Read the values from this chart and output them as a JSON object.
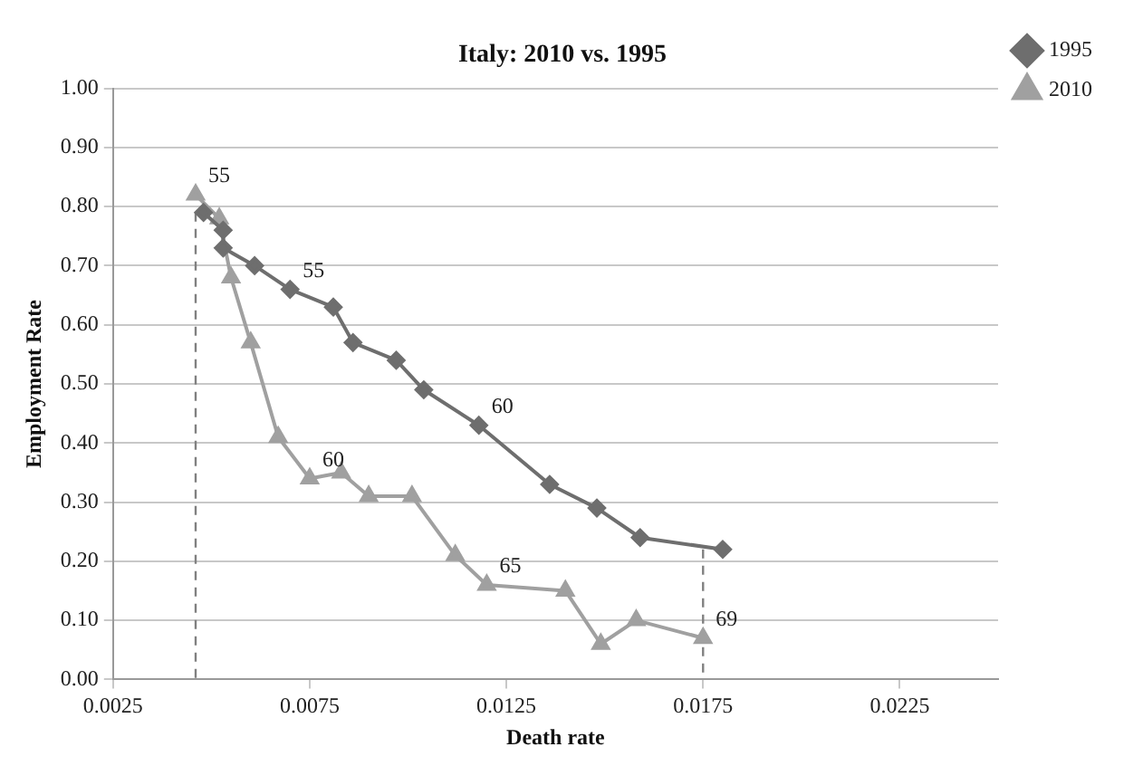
{
  "chart_data": {
    "type": "line",
    "title": "Italy: 2010 vs. 1995",
    "xlabel": "Death rate",
    "ylabel": "Employment Rate",
    "xlim": [
      0.0025,
      0.025
    ],
    "xticks": [
      {
        "value": 0.0025,
        "label": "0.0025"
      },
      {
        "value": 0.0075,
        "label": "0.0075"
      },
      {
        "value": 0.0125,
        "label": "0.0125"
      },
      {
        "value": 0.0175,
        "label": "0.0175"
      },
      {
        "value": 0.0225,
        "label": "0.0225"
      }
    ],
    "ylim": [
      0,
      1
    ],
    "yticks": [
      {
        "value": 0,
        "label": "0.00"
      },
      {
        "value": 0.1,
        "label": "0.10"
      },
      {
        "value": 0.2,
        "label": "0.20"
      },
      {
        "value": 0.3,
        "label": "0.30"
      },
      {
        "value": 0.4,
        "label": "0.40"
      },
      {
        "value": 0.5,
        "label": "0.50"
      },
      {
        "value": 0.6,
        "label": "0.60"
      },
      {
        "value": 0.7,
        "label": "0.70"
      },
      {
        "value": 0.8,
        "label": "0.80"
      },
      {
        "value": 0.9,
        "label": "0.90"
      },
      {
        "value": 1,
        "label": "1.00"
      }
    ],
    "grid": "y",
    "legend": "right",
    "series": [
      {
        "name": "1995",
        "color": "#6e6e6e",
        "marker": "diamond",
        "x": [
          0.0048,
          0.0053,
          0.0053,
          0.0061,
          0.007,
          0.0081,
          0.0086,
          0.0097,
          0.0104,
          0.0118,
          0.0136,
          0.0148,
          0.0159,
          0.018
        ],
        "values": [
          0.79,
          0.76,
          0.73,
          0.7,
          0.66,
          0.63,
          0.57,
          0.54,
          0.49,
          0.43,
          0.33,
          0.29,
          0.24,
          0.22
        ]
      },
      {
        "name": "2010",
        "color": "#a0a0a0",
        "marker": "triangle",
        "x": [
          0.0046,
          0.0052,
          0.0055,
          0.006,
          0.0067,
          0.0075,
          0.0083,
          0.009,
          0.0101,
          0.0112,
          0.012,
          0.014,
          0.0149,
          0.0158,
          0.0175
        ],
        "values": [
          0.82,
          0.78,
          0.68,
          0.57,
          0.41,
          0.34,
          0.35,
          0.31,
          0.31,
          0.21,
          0.16,
          0.15,
          0.06,
          0.1,
          0.07
        ]
      },
      {
        "color": "#808080",
        "marker": "none",
        "line_style": "dashed",
        "x": [
          0.0046,
          0.0046
        ],
        "values": [
          0.79,
          0
        ]
      },
      {
        "color": "#808080",
        "marker": "none",
        "line_style": "dashed",
        "x": [
          0.0175,
          0.0175
        ],
        "values": [
          0.22,
          0
        ]
      }
    ],
    "annotations": [
      {
        "text": "55",
        "x": 0.0046,
        "y": 0.82
      },
      {
        "text": "55",
        "x": 0.007,
        "y": 0.66
      },
      {
        "text": "60",
        "x": 0.0118,
        "y": 0.43
      },
      {
        "text": "60",
        "x": 0.0075,
        "y": 0.34
      },
      {
        "text": "65",
        "x": 0.012,
        "y": 0.16
      },
      {
        "text": "69",
        "x": 0.0175,
        "y": 0.07
      }
    ]
  }
}
